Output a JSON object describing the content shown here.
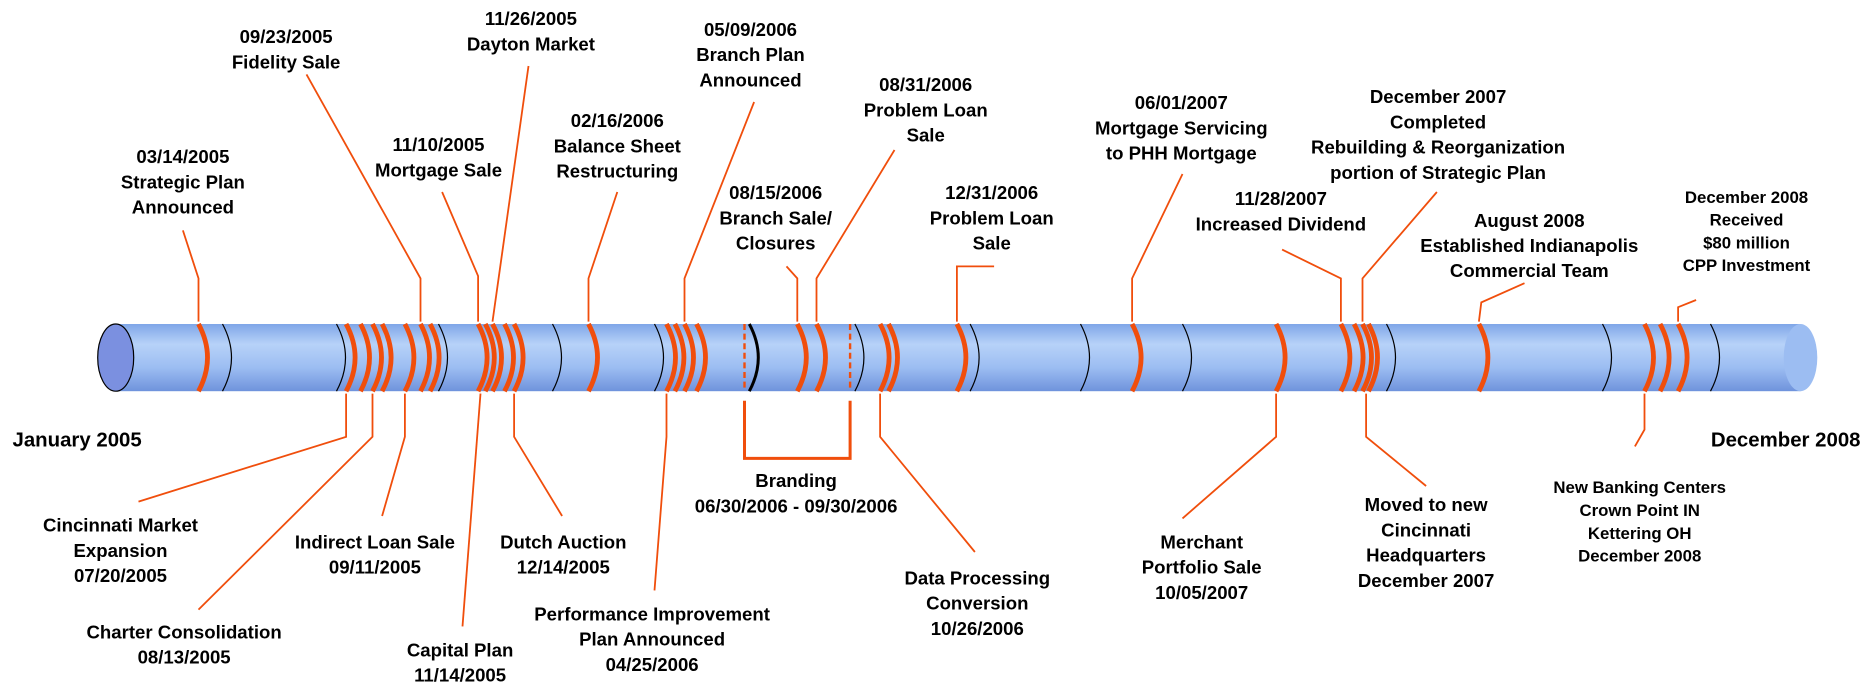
{
  "start_label": "January 2005",
  "end_label": "December 2008",
  "events": [
    {
      "lines": [
        "03/14/2005",
        "Strategic Plan",
        "Announced"
      ]
    },
    {
      "lines": [
        "09/23/2005",
        "Fidelity Sale"
      ]
    },
    {
      "lines": [
        "11/10/2005",
        "Mortgage Sale"
      ]
    },
    {
      "lines": [
        "11/26/2005",
        "Dayton Market"
      ]
    },
    {
      "lines": [
        "02/16/2006",
        "Balance Sheet",
        "Restructuring"
      ]
    },
    {
      "lines": [
        "05/09/2006",
        "Branch Plan",
        "Announced"
      ]
    },
    {
      "lines": [
        "08/15/2006",
        "Branch Sale/",
        "Closures"
      ]
    },
    {
      "lines": [
        "08/31/2006",
        "Problem Loan",
        "Sale"
      ]
    },
    {
      "lines": [
        "12/31/2006",
        "Problem Loan",
        "Sale"
      ]
    },
    {
      "lines": [
        "06/01/2007",
        "Mortgage Servicing",
        "to PHH Mortgage"
      ]
    },
    {
      "lines": [
        "11/28/2007",
        "Increased Dividend"
      ]
    },
    {
      "lines": [
        "December 2007",
        "Completed",
        "Rebuilding & Reorganization",
        "portion of Strategic Plan"
      ]
    },
    {
      "lines": [
        "August 2008",
        "Established Indianapolis",
        "Commercial Team"
      ]
    },
    {
      "lines": [
        "December 2008",
        "Received",
        "$80 million",
        "CPP Investment"
      ]
    },
    {
      "lines": [
        "Cincinnati Market",
        "Expansion",
        "07/20/2005"
      ]
    },
    {
      "lines": [
        "Charter Consolidation",
        "08/13/2005"
      ]
    },
    {
      "lines": [
        "Indirect Loan Sale",
        "09/11/2005"
      ]
    },
    {
      "lines": [
        "Capital Plan",
        "11/14/2005"
      ]
    },
    {
      "lines": [
        "Dutch Auction",
        "12/14/2005"
      ]
    },
    {
      "lines": [
        "Performance Improvement",
        "Plan Announced",
        "04/25/2006"
      ]
    },
    {
      "lines": [
        "Branding",
        "06/30/2006 - 09/30/2006"
      ]
    },
    {
      "lines": [
        "Data Processing",
        "Conversion",
        "10/26/2006"
      ]
    },
    {
      "lines": [
        "Merchant",
        "Portfolio Sale",
        "10/05/2007"
      ]
    },
    {
      "lines": [
        "Moved to new",
        "Cincinnati",
        "Headquarters",
        "December 2007"
      ]
    },
    {
      "lines": [
        "New Banking Centers",
        "Crown Point IN",
        "Kettering OH",
        "December 2008"
      ]
    }
  ]
}
